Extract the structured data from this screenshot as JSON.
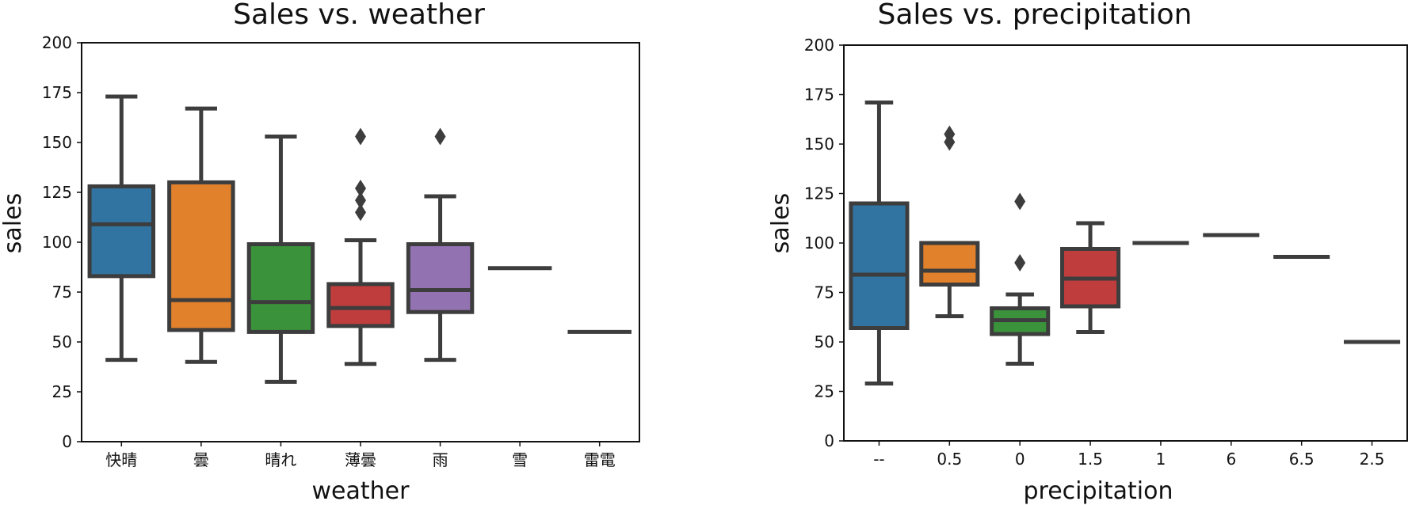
{
  "chart_data": [
    {
      "type": "box",
      "title": "Sales vs. weather",
      "xlabel": "weather",
      "ylabel": "sales",
      "ylim": [
        0,
        200
      ],
      "yticks": [
        0,
        25,
        50,
        75,
        100,
        125,
        150,
        175,
        200
      ],
      "categories": [
        "快晴",
        "曇",
        "晴れ",
        "薄曇",
        "雨",
        "雪",
        "雷電"
      ],
      "grid": false,
      "boxes": [
        {
          "category": "快晴",
          "whisker_low": 41,
          "q1": 83,
          "median": 109,
          "q3": 128,
          "whisker_high": 173,
          "fliers": [],
          "color": "#3274a1"
        },
        {
          "category": "曇",
          "whisker_low": 40,
          "q1": 56,
          "median": 71,
          "q3": 130,
          "whisker_high": 167,
          "fliers": [],
          "color": "#e1812c"
        },
        {
          "category": "晴れ",
          "whisker_low": 30,
          "q1": 55,
          "median": 70,
          "q3": 99,
          "whisker_high": 153,
          "fliers": [],
          "color": "#3a923a"
        },
        {
          "category": "薄曇",
          "whisker_low": 39,
          "q1": 58,
          "median": 67,
          "q3": 79,
          "whisker_high": 101,
          "fliers": [
            115,
            121,
            127,
            153
          ],
          "color": "#c03d3e"
        },
        {
          "category": "雨",
          "whisker_low": 41,
          "q1": 65,
          "median": 76,
          "q3": 99,
          "whisker_high": 123,
          "fliers": [
            153
          ],
          "color": "#9372b2"
        },
        {
          "category": "雪",
          "whisker_low": 87,
          "q1": 87,
          "median": 87,
          "q3": 87,
          "whisker_high": 87,
          "fliers": [],
          "color": "#845b53"
        },
        {
          "category": "雷電",
          "whisker_low": 55,
          "q1": 55,
          "median": 55,
          "q3": 55,
          "whisker_high": 55,
          "fliers": [],
          "color": "#d684bd"
        }
      ]
    },
    {
      "type": "box",
      "title": "Sales vs. precipitation",
      "xlabel": "precipitation",
      "ylabel": "sales",
      "ylim": [
        0,
        200
      ],
      "yticks": [
        0,
        25,
        50,
        75,
        100,
        125,
        150,
        175,
        200
      ],
      "categories": [
        "--",
        "0.5",
        "0",
        "1.5",
        "1",
        "6",
        "6.5",
        "2.5"
      ],
      "grid": false,
      "boxes": [
        {
          "category": "--",
          "whisker_low": 29,
          "q1": 57,
          "median": 84,
          "q3": 120,
          "whisker_high": 171,
          "fliers": [],
          "color": "#3274a1"
        },
        {
          "category": "0.5",
          "whisker_low": 63,
          "q1": 79,
          "median": 86,
          "q3": 100,
          "whisker_high": 100,
          "fliers": [
            151,
            155
          ],
          "color": "#e1812c"
        },
        {
          "category": "0",
          "whisker_low": 39,
          "q1": 54,
          "median": 61,
          "q3": 67,
          "whisker_high": 74,
          "fliers": [
            90,
            121
          ],
          "color": "#3a923a"
        },
        {
          "category": "1.5",
          "whisker_low": 55,
          "q1": 68,
          "median": 82,
          "q3": 97,
          "whisker_high": 110,
          "fliers": [],
          "color": "#c03d3e"
        },
        {
          "category": "1",
          "whisker_low": 100,
          "q1": 100,
          "median": 100,
          "q3": 100,
          "whisker_high": 100,
          "fliers": [],
          "color": "#9372b2"
        },
        {
          "category": "6",
          "whisker_low": 104,
          "q1": 104,
          "median": 104,
          "q3": 104,
          "whisker_high": 104,
          "fliers": [],
          "color": "#845b53"
        },
        {
          "category": "6.5",
          "whisker_low": 93,
          "q1": 93,
          "median": 93,
          "q3": 93,
          "whisker_high": 93,
          "fliers": [],
          "color": "#d684bd"
        },
        {
          "category": "2.5",
          "whisker_low": 50,
          "q1": 50,
          "median": 50,
          "q3": 50,
          "whisker_high": 50,
          "fliers": [],
          "color": "#7f7f7f"
        }
      ]
    }
  ]
}
